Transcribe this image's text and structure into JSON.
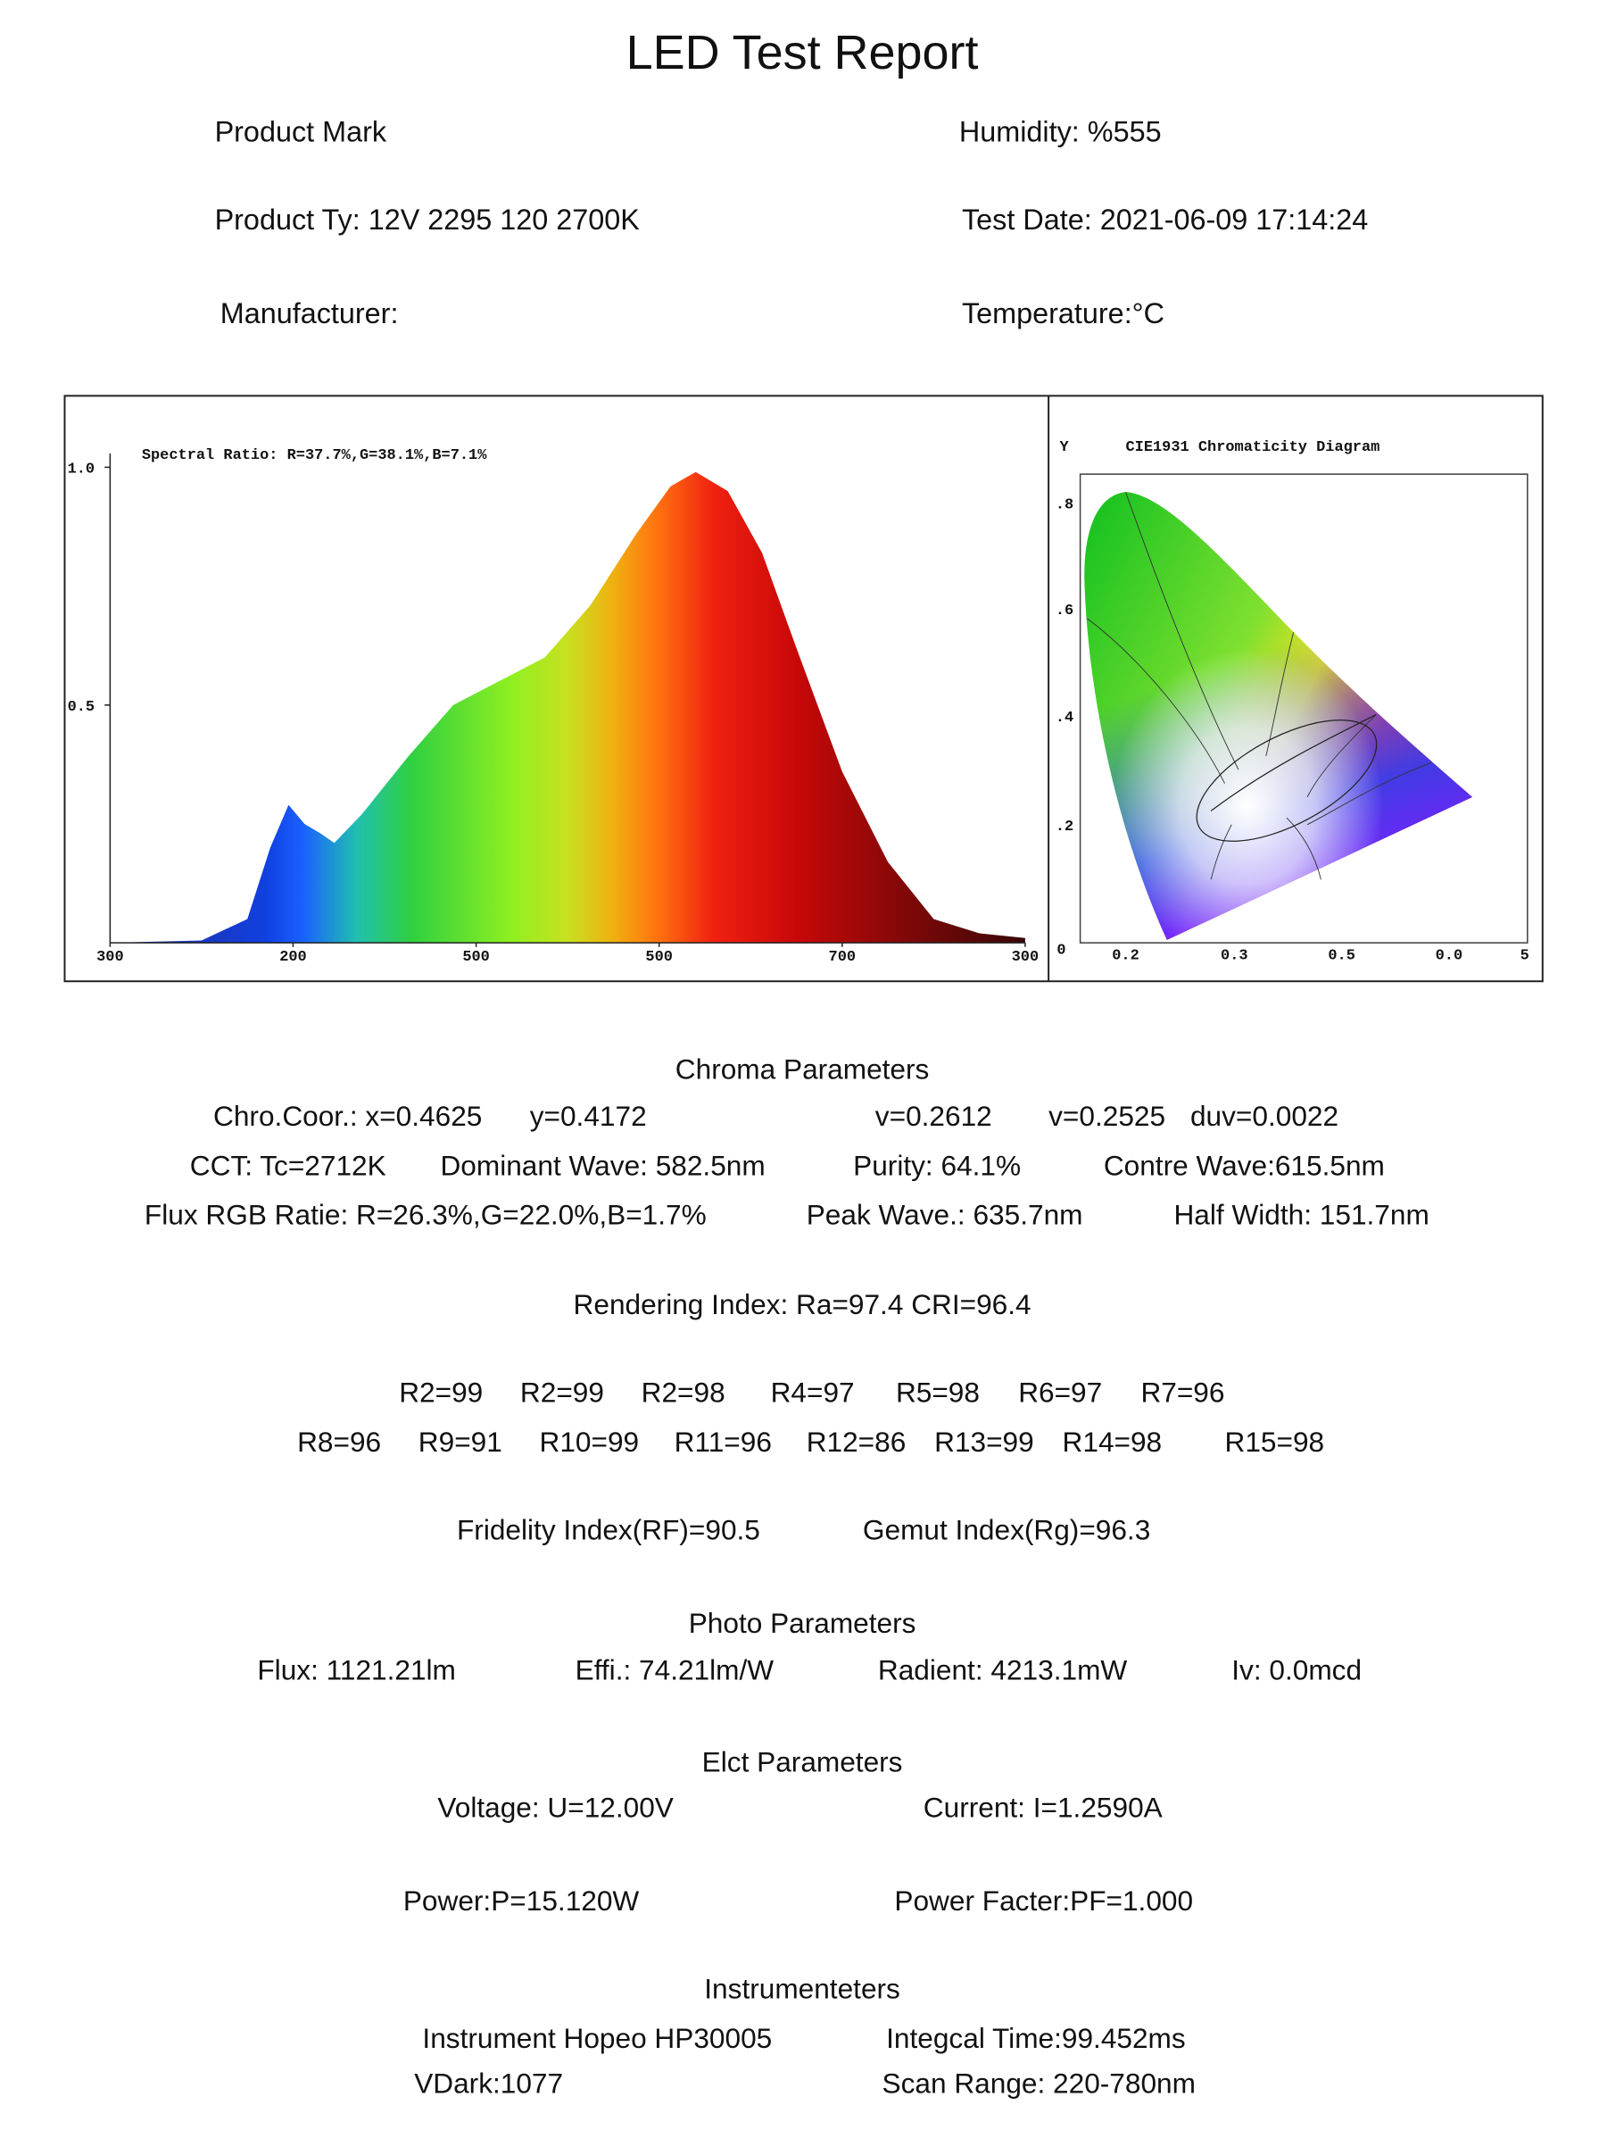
{
  "title": "LED Test Report",
  "header": {
    "left": [
      "Product Mark",
      "Product Ty: 12V 2295 120 2700K",
      "Manufacturer:"
    ],
    "right": [
      "Humidity: %555",
      "Test Date: 2021-06-09 17:14:24",
      "Temperature:°C"
    ]
  },
  "chart_data": {
    "type": "area",
    "title": "Spectral Ratio:  R=37.7%,G=38.1%,B=7.1%",
    "x": [
      380,
      420,
      440,
      450,
      458,
      465,
      472,
      478,
      490,
      510,
      530,
      550,
      570,
      590,
      610,
      625,
      636,
      650,
      665,
      680,
      700,
      720,
      740,
      760,
      780
    ],
    "values": [
      0,
      0.005,
      0.05,
      0.2,
      0.29,
      0.25,
      0.23,
      0.21,
      0.27,
      0.39,
      0.5,
      0.55,
      0.6,
      0.71,
      0.86,
      0.96,
      0.99,
      0.95,
      0.82,
      0.62,
      0.36,
      0.17,
      0.05,
      0.02,
      0.01
    ],
    "xlim": [
      380,
      780
    ],
    "ylim": [
      0,
      1.0
    ],
    "xticks": [
      {
        "value": 380,
        "label": "300"
      },
      {
        "value": 460,
        "label": "200"
      },
      {
        "value": 540,
        "label": "500"
      },
      {
        "value": 620,
        "label": "500"
      },
      {
        "value": 700,
        "label": "700"
      },
      {
        "value": 780,
        "label": "300"
      }
    ],
    "yticks": [
      {
        "value": 1.0,
        "label": "1.0"
      },
      {
        "value": 0.5,
        "label": "0.5"
      }
    ]
  },
  "cie": {
    "axis_label": "Y",
    "title": "CIE1931 Chromaticity Diagram",
    "yticks": [
      ".8",
      ".6",
      ".4",
      ".2",
      "0"
    ],
    "xticks": [
      "0.2",
      "0.3",
      "0.5",
      "0.0",
      "5"
    ]
  },
  "lines": [
    [
      "Chroma Parameters"
    ],
    [
      "Chro.Coor.: x=0.4625",
      "y=0.4172",
      "v=0.2612",
      "v=0.2525",
      "duv=0.0022"
    ],
    [
      "CCT: Tc=2712K",
      "Dominant Wave: 582.5nm",
      "Purity: 64.1%",
      "Contre Wave:615.5nm"
    ],
    [
      "Flux RGB Ratie: R=26.3%,G=22.0%,B=1.7%",
      "Peak Wave.: 635.7nm",
      "Half Width: 151.7nm"
    ],
    [
      "Rendering Index: Ra=97.4  CRI=96.4"
    ],
    [
      "R2=99",
      "R2=99",
      "R2=98",
      "R4=97",
      "R5=98",
      "R6=97",
      "R7=96"
    ],
    [
      "R8=96",
      "R9=91",
      "R10=99",
      "R11=96",
      "R12=86",
      "R13=99",
      "R14=98",
      "R15=98"
    ],
    [
      "Fridelity Index(RF)=90.5",
      "Gemut Index(Rg)=96.3"
    ],
    [
      "Photo Parameters"
    ],
    [
      "Flux: 1121.21lm",
      "Effi.: 74.21lm/W",
      "Radient: 4213.1mW",
      "Iv: 0.0mcd"
    ],
    [
      "Elct Parameters"
    ],
    [
      "Voltage: U=12.00V",
      "Current: I=1.2590A"
    ],
    [
      "Power:P=15.120W",
      "Power Facter:PF=1.000"
    ],
    [
      "Instrumenteters"
    ],
    [
      "Instrument Hopeo HP30005",
      "Integcal Time:99.452ms"
    ],
    [
      "VDark:1077",
      "Scan Range: 220-780nm"
    ]
  ]
}
